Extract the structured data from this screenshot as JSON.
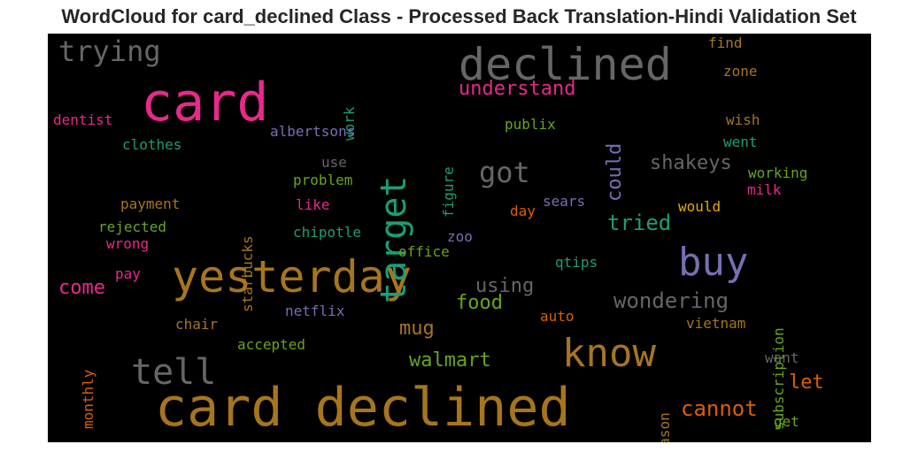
{
  "title": "WordCloud for card_declined Class - Processed Back Translation-Hindi Validation Set",
  "words": [
    {
      "text": "card declined",
      "color": "#A6761D"
    },
    {
      "text": "yesterday",
      "color": "#A6761D"
    },
    {
      "text": "card",
      "color": "#E7298A"
    },
    {
      "text": "declined",
      "color": "#666666"
    },
    {
      "text": "buy",
      "color": "#7570B3"
    },
    {
      "text": "know",
      "color": "#A6761D"
    },
    {
      "text": "tell",
      "color": "#666666"
    },
    {
      "text": "target",
      "color": "#1B9E77"
    },
    {
      "text": "trying",
      "color": "#666666"
    },
    {
      "text": "got",
      "color": "#666666"
    },
    {
      "text": "understand",
      "color": "#E7298A"
    },
    {
      "text": "could",
      "color": "#7570B3"
    },
    {
      "text": "shakeys",
      "color": "#666666"
    },
    {
      "text": "tried",
      "color": "#1B9E77"
    },
    {
      "text": "cannot",
      "color": "#D95F02"
    },
    {
      "text": "wondering",
      "color": "#666666"
    },
    {
      "text": "using",
      "color": "#666666"
    },
    {
      "text": "walmart",
      "color": "#66A61E"
    },
    {
      "text": "food",
      "color": "#66A61E"
    },
    {
      "text": "mug",
      "color": "#A6761D"
    },
    {
      "text": "come",
      "color": "#E7298A"
    },
    {
      "text": "let",
      "color": "#D95F02"
    },
    {
      "text": "find",
      "color": "#A6761D"
    },
    {
      "text": "zone",
      "color": "#A6761D"
    },
    {
      "text": "wish",
      "color": "#A6761D"
    },
    {
      "text": "went",
      "color": "#1B9E77"
    },
    {
      "text": "working",
      "color": "#66A61E"
    },
    {
      "text": "milk",
      "color": "#E7298A"
    },
    {
      "text": "would",
      "color": "#E6AB02"
    },
    {
      "text": "subscription",
      "color": "#66A61E"
    },
    {
      "text": "vietnam",
      "color": "#A6761D"
    },
    {
      "text": "want",
      "color": "#666666"
    },
    {
      "text": "get",
      "color": "#66A61E"
    },
    {
      "text": "reason",
      "color": "#A6761D"
    },
    {
      "text": "auto",
      "color": "#D95F02"
    },
    {
      "text": "qtips",
      "color": "#1B9E77"
    },
    {
      "text": "zoo",
      "color": "#7570B3"
    },
    {
      "text": "office",
      "color": "#66A61E"
    },
    {
      "text": "sears",
      "color": "#7570B3"
    },
    {
      "text": "day",
      "color": "#D95F02"
    },
    {
      "text": "publix",
      "color": "#66A61E"
    },
    {
      "text": "figure",
      "color": "#1B9E77"
    },
    {
      "text": "work",
      "color": "#1B9E77"
    },
    {
      "text": "albertsons",
      "color": "#7570B3"
    },
    {
      "text": "use",
      "color": "#666666"
    },
    {
      "text": "problem",
      "color": "#66A61E"
    },
    {
      "text": "like",
      "color": "#E7298A"
    },
    {
      "text": "chipotle",
      "color": "#1B9E77"
    },
    {
      "text": "starbucks",
      "color": "#A6761D"
    },
    {
      "text": "netflix",
      "color": "#7570B3"
    },
    {
      "text": "accepted",
      "color": "#66A61E"
    },
    {
      "text": "chair",
      "color": "#A6761D"
    },
    {
      "text": "monthly",
      "color": "#D95F02"
    },
    {
      "text": "pay",
      "color": "#E7298A"
    },
    {
      "text": "wrong",
      "color": "#E7298A"
    },
    {
      "text": "rejected",
      "color": "#66A61E"
    },
    {
      "text": "payment",
      "color": "#A6761D"
    },
    {
      "text": "clothes",
      "color": "#1B9E77"
    },
    {
      "text": "dentist",
      "color": "#E7298A"
    }
  ]
}
